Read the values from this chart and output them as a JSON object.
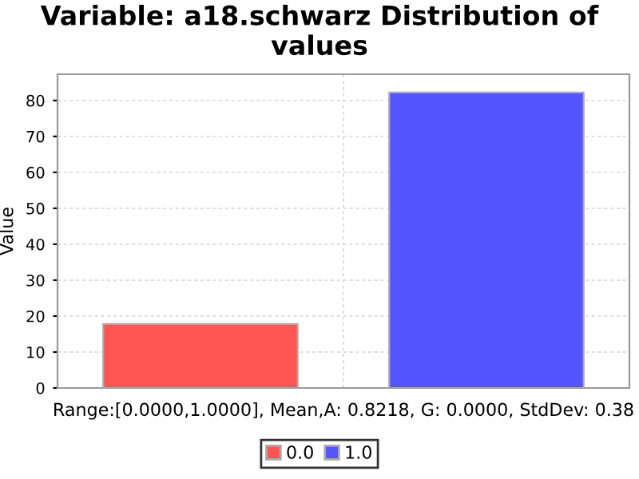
{
  "chart_data": {
    "type": "bar",
    "title": "Variable: a18.schwarz Distribution of values",
    "xlabel": "Range:[0.0000,1.0000], Mean,A: 0.8218, G: 0.0000, StdDev: 0.38",
    "ylabel": "Value",
    "categories": [
      null,
      null
    ],
    "series": [
      {
        "name": "0.0",
        "color": "#ff5555",
        "values": [
          17.8,
          null
        ]
      },
      {
        "name": "1.0",
        "color": "#5555ff",
        "values": [
          null,
          82.2
        ]
      }
    ],
    "ylim": [
      0,
      87.3
    ],
    "yticks": [
      0,
      10,
      20,
      30,
      40,
      50,
      60,
      70,
      80
    ],
    "grid": true,
    "legend": "bottom"
  }
}
